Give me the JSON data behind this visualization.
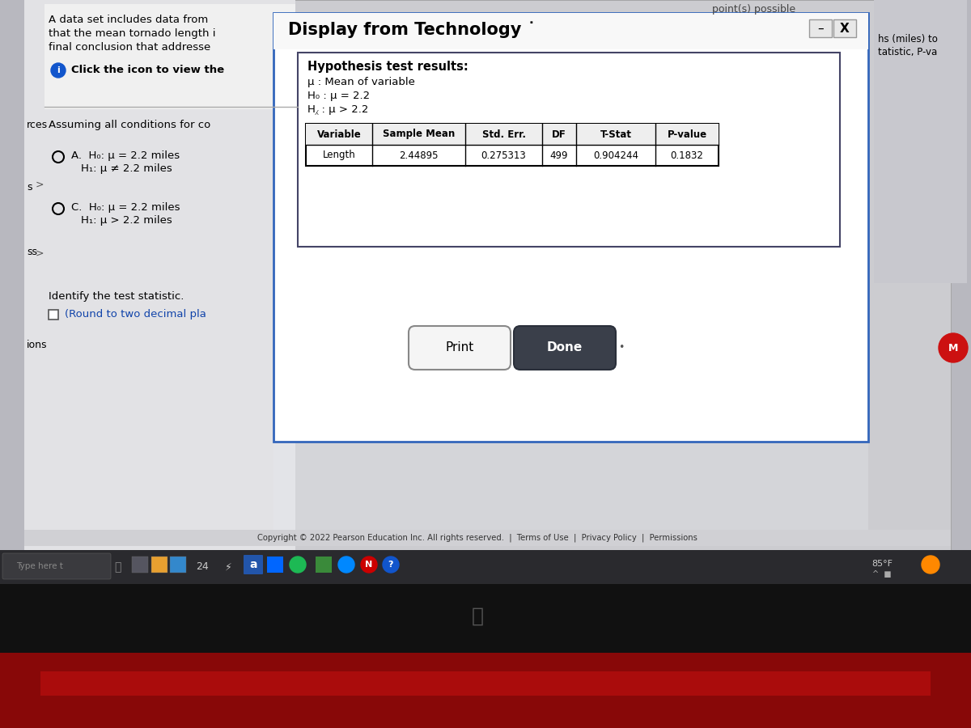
{
  "bg_color": "#0a0505",
  "screen_bg": "#c0bfc5",
  "left_panel_bg": "#dcdce0",
  "dialog_bg": "#ffffff",
  "dialog_border": "#3366bb",
  "title_text": "Display from Technology ˙",
  "title_fontsize": 15,
  "hypothesis_title": "Hypothesis test results:",
  "hypothesis_lines": [
    "μ : Mean of variable",
    "H₀ : μ = 2.2",
    "H⁁ : μ > 2.2"
  ],
  "table_headers": [
    "Variable",
    "Sample Mean",
    "Std. Err.",
    "DF",
    "T-Stat",
    "P-value"
  ],
  "table_row": [
    "Length",
    "2.44895",
    "0.275313",
    "499",
    "0.904244",
    "0.1832"
  ],
  "print_btn_text": "Print",
  "done_btn_text": "Done",
  "done_btn_bg": "#3a3f4a",
  "copyright_text": "Copyright © 2022 Pearson Education Inc. All rights reserved.  |  Terms of Use  |  Privacy Policy  |  Permissions",
  "top_right_corner": "point(s) possible",
  "taskbar_temp": "85°F",
  "taskbar_time": "24",
  "orange_circle": "#ff8800",
  "inner_box_border": "#333355"
}
